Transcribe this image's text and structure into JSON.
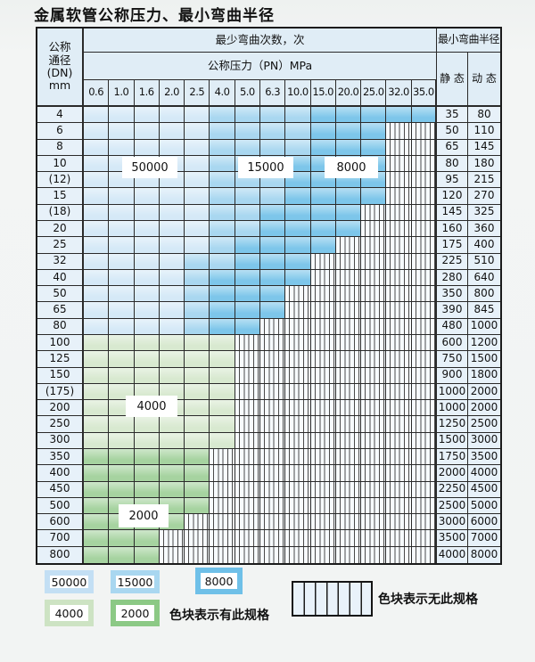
{
  "title": "金属软管公称压力、最小弯曲半径",
  "table": {
    "corner": "公称\n通径\n(DN)\nmm",
    "bend_header": "最少弯曲次数，次",
    "pressure_header": "公称压力（PN）MPa",
    "radius_header": "最小弯曲半径",
    "static_label": "静 态",
    "dynamic_label": "动 态",
    "pressures": [
      "0.6",
      "1.0",
      "1.6",
      "2.0",
      "2.5",
      "4.0",
      "5.0",
      "6.3",
      "10.0",
      "15.0",
      "20.0",
      "25.0",
      "32.0",
      "35.0"
    ],
    "rows": [
      {
        "dn": "4",
        "static": "35",
        "dynamic": "80",
        "bands": [
          [
            "b50",
            5
          ],
          [
            "b15",
            4
          ],
          [
            "b8",
            5
          ]
        ]
      },
      {
        "dn": "6",
        "static": "50",
        "dynamic": "110",
        "bands": [
          [
            "b50",
            5
          ],
          [
            "b15",
            4
          ],
          [
            "b8",
            3
          ]
        ]
      },
      {
        "dn": "8",
        "static": "65",
        "dynamic": "145",
        "bands": [
          [
            "b50",
            5
          ],
          [
            "b15",
            4
          ],
          [
            "b8",
            3
          ]
        ]
      },
      {
        "dn": "10",
        "static": "80",
        "dynamic": "180",
        "bands": [
          [
            "b50",
            5
          ],
          [
            "b15",
            3
          ],
          [
            "b8",
            4
          ]
        ]
      },
      {
        "dn": "(12)",
        "static": "95",
        "dynamic": "215",
        "bands": [
          [
            "b50",
            5
          ],
          [
            "b15",
            3
          ],
          [
            "b8",
            4
          ]
        ]
      },
      {
        "dn": "15",
        "static": "120",
        "dynamic": "270",
        "bands": [
          [
            "b50",
            5
          ],
          [
            "b15",
            3
          ],
          [
            "b8",
            4
          ]
        ]
      },
      {
        "dn": "(18)",
        "static": "145",
        "dynamic": "325",
        "bands": [
          [
            "b50",
            5
          ],
          [
            "b15",
            2
          ],
          [
            "b8",
            4
          ]
        ]
      },
      {
        "dn": "20",
        "static": "160",
        "dynamic": "360",
        "bands": [
          [
            "b50",
            5
          ],
          [
            "b15",
            2
          ],
          [
            "b8",
            4
          ]
        ]
      },
      {
        "dn": "25",
        "static": "175",
        "dynamic": "400",
        "bands": [
          [
            "b50",
            5
          ],
          [
            "b15",
            1
          ],
          [
            "b8",
            4
          ]
        ]
      },
      {
        "dn": "32",
        "static": "225",
        "dynamic": "510",
        "bands": [
          [
            "b50",
            4
          ],
          [
            "b15",
            2
          ],
          [
            "b8",
            3
          ]
        ]
      },
      {
        "dn": "40",
        "static": "280",
        "dynamic": "640",
        "bands": [
          [
            "b50",
            4
          ],
          [
            "b15",
            1
          ],
          [
            "b8",
            4
          ]
        ]
      },
      {
        "dn": "50",
        "static": "350",
        "dynamic": "800",
        "bands": [
          [
            "b50",
            4
          ],
          [
            "b15",
            1
          ],
          [
            "b8",
            3
          ]
        ]
      },
      {
        "dn": "65",
        "static": "390",
        "dynamic": "845",
        "bands": [
          [
            "b50",
            4
          ],
          [
            "b15",
            1
          ],
          [
            "b8",
            3
          ]
        ]
      },
      {
        "dn": "80",
        "static": "480",
        "dynamic": "1000",
        "bands": [
          [
            "b50",
            4
          ],
          [
            "b15",
            1
          ],
          [
            "b8",
            2
          ]
        ]
      },
      {
        "dn": "100",
        "static": "600",
        "dynamic": "1200",
        "bands": [
          [
            "b4",
            6
          ]
        ]
      },
      {
        "dn": "125",
        "static": "750",
        "dynamic": "1500",
        "bands": [
          [
            "b4",
            6
          ]
        ]
      },
      {
        "dn": "150",
        "static": "900",
        "dynamic": "1800",
        "bands": [
          [
            "b4",
            6
          ]
        ]
      },
      {
        "dn": "(175)",
        "static": "1000",
        "dynamic": "2000",
        "bands": [
          [
            "b4",
            6
          ]
        ]
      },
      {
        "dn": "200",
        "static": "1000",
        "dynamic": "2000",
        "bands": [
          [
            "b4",
            6
          ]
        ]
      },
      {
        "dn": "250",
        "static": "1250",
        "dynamic": "2500",
        "bands": [
          [
            "b4",
            6
          ]
        ]
      },
      {
        "dn": "300",
        "static": "1500",
        "dynamic": "3000",
        "bands": [
          [
            "b4",
            6
          ]
        ]
      },
      {
        "dn": "350",
        "static": "1750",
        "dynamic": "3500",
        "bands": [
          [
            "b2",
            5
          ]
        ]
      },
      {
        "dn": "400",
        "static": "2000",
        "dynamic": "4000",
        "bands": [
          [
            "b2",
            5
          ]
        ]
      },
      {
        "dn": "450",
        "static": "2250",
        "dynamic": "4500",
        "bands": [
          [
            "b2",
            5
          ]
        ]
      },
      {
        "dn": "500",
        "static": "2500",
        "dynamic": "5000",
        "bands": [
          [
            "b2",
            5
          ]
        ]
      },
      {
        "dn": "600",
        "static": "3000",
        "dynamic": "6000",
        "bands": [
          [
            "b2",
            4
          ]
        ]
      },
      {
        "dn": "700",
        "static": "3500",
        "dynamic": "7000",
        "bands": [
          [
            "b2",
            3
          ]
        ]
      },
      {
        "dn": "800",
        "static": "4000",
        "dynamic": "8000",
        "bands": [
          [
            "b2",
            3
          ]
        ]
      }
    ]
  },
  "overlay_labels": [
    "50000",
    "15000",
    "8000",
    "4000",
    "2000"
  ],
  "legend": {
    "items": [
      {
        "label": "50000",
        "color_key": "b50"
      },
      {
        "label": "15000",
        "color_key": "b15"
      },
      {
        "label": "8000",
        "color_key": "b8"
      },
      {
        "label": "4000",
        "color_key": "b4"
      },
      {
        "label": "2000",
        "color_key": "b2"
      }
    ],
    "has_spec_text": "色块表示有此规格",
    "no_spec_text": "色块表示无此规格"
  },
  "colors": {
    "b50": "#d5e9f7",
    "b15": "#a9d7f0",
    "b8": "#7dc6ea",
    "b4": "#d8e9d0",
    "b2": "#a6d3a0",
    "swatch_b50": "#c3dff4",
    "swatch_b15": "#a9d7f0",
    "swatch_b8": "#6fc0e8",
    "swatch_b4": "#cde3c3",
    "swatch_b2": "#8cc985"
  }
}
